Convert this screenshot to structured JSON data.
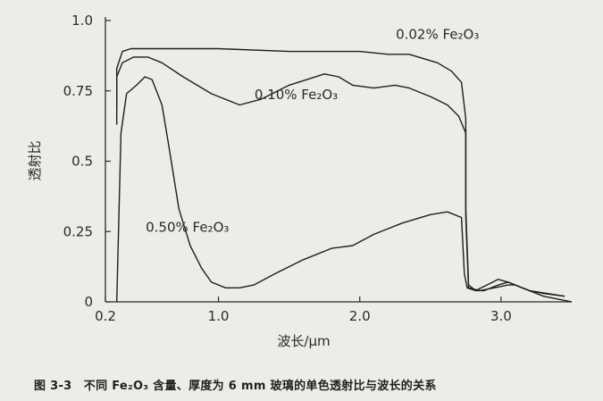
{
  "chart_data": {
    "type": "line",
    "title": "",
    "xlabel": "波长/μm",
    "ylabel": "透射比",
    "xlim": [
      0.2,
      3.5
    ],
    "ylim": [
      0,
      1.0
    ],
    "xticks": [
      {
        "value": 0.2,
        "label": "0.2"
      },
      {
        "value": 1.0,
        "label": "1.0"
      },
      {
        "value": 2.0,
        "label": "2.0"
      },
      {
        "value": 3.0,
        "label": "3.0"
      }
    ],
    "yticks": [
      {
        "value": 0.0,
        "label": "0"
      },
      {
        "value": 0.25,
        "label": "0.25"
      },
      {
        "value": 0.5,
        "label": "0.5"
      },
      {
        "value": 0.75,
        "label": "0.75"
      },
      {
        "value": 1.0,
        "label": "1.0"
      }
    ],
    "grid": false,
    "legend": "none",
    "series": [
      {
        "name": "0.02% Fe2O3",
        "label": "0.02% Fe₂O₃",
        "x": [
          0.28,
          0.28,
          0.32,
          0.38,
          0.5,
          0.8,
          1.0,
          1.5,
          1.8,
          2.0,
          2.2,
          2.35,
          2.55,
          2.65,
          2.72,
          2.75,
          2.75,
          2.77,
          2.82,
          2.88,
          2.93,
          2.98,
          3.05,
          3.1,
          3.2,
          3.3,
          3.45
        ],
        "y": [
          0.69,
          0.83,
          0.89,
          0.9,
          0.9,
          0.9,
          0.9,
          0.89,
          0.89,
          0.89,
          0.88,
          0.88,
          0.85,
          0.82,
          0.78,
          0.65,
          0.33,
          0.06,
          0.04,
          0.04,
          0.05,
          0.06,
          0.07,
          0.06,
          0.04,
          0.03,
          0.02
        ]
      },
      {
        "name": "0.10% Fe2O3",
        "label": "0.10% Fe₂O₃",
        "x": [
          0.28,
          0.28,
          0.32,
          0.4,
          0.5,
          0.6,
          0.75,
          0.95,
          1.15,
          1.3,
          1.5,
          1.75,
          1.85,
          1.95,
          2.1,
          2.25,
          2.35,
          2.5,
          2.62,
          2.7,
          2.75,
          2.75,
          2.77,
          2.85,
          2.95,
          3.05,
          3.1,
          3.2,
          3.45
        ],
        "y": [
          0.63,
          0.8,
          0.85,
          0.87,
          0.87,
          0.85,
          0.8,
          0.74,
          0.7,
          0.72,
          0.77,
          0.81,
          0.8,
          0.77,
          0.76,
          0.77,
          0.76,
          0.73,
          0.7,
          0.66,
          0.6,
          0.3,
          0.05,
          0.04,
          0.05,
          0.06,
          0.06,
          0.04,
          0.02
        ]
      },
      {
        "name": "0.50% Fe2O3",
        "label": "0.50% Fe₂O₃",
        "x": [
          0.28,
          0.31,
          0.35,
          0.42,
          0.48,
          0.53,
          0.6,
          0.65,
          0.72,
          0.8,
          0.88,
          0.95,
          1.05,
          1.15,
          1.25,
          1.4,
          1.6,
          1.8,
          1.95,
          2.1,
          2.3,
          2.5,
          2.62,
          2.72,
          2.74,
          2.76,
          2.82,
          2.9,
          2.98,
          3.05,
          3.15,
          3.3,
          3.5
        ],
        "y": [
          0.0,
          0.6,
          0.74,
          0.77,
          0.8,
          0.79,
          0.7,
          0.55,
          0.33,
          0.2,
          0.12,
          0.07,
          0.05,
          0.05,
          0.06,
          0.1,
          0.15,
          0.19,
          0.2,
          0.24,
          0.28,
          0.31,
          0.32,
          0.3,
          0.1,
          0.05,
          0.04,
          0.06,
          0.08,
          0.07,
          0.05,
          0.02,
          0.0
        ]
      }
    ]
  },
  "caption": "图 3-3　不同 Fe₂O₃ 含量、厚度为 6 mm 玻璃的单色透射比与波长的关系"
}
